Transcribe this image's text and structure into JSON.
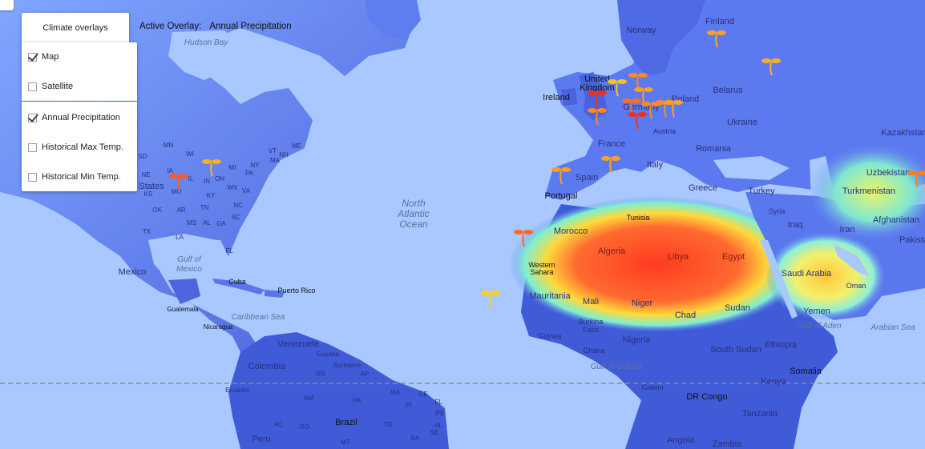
{
  "controls": {
    "overlay_button_label": "Climate overlays",
    "active_overlay_label": "Active Overlay:",
    "active_overlay_value": "Annual Precipitation",
    "map_types": [
      {
        "label": "Map",
        "checked": true
      },
      {
        "label": "Satellite",
        "checked": false
      }
    ],
    "overlays": [
      {
        "label": "Annual Precipitation",
        "checked": true
      },
      {
        "label": "Historical Max Temp.",
        "checked": false
      },
      {
        "label": "Historical Min Temp.",
        "checked": false
      }
    ]
  },
  "map": {
    "ocean_labels": {
      "north_atlantic_1": "North",
      "north_atlantic_2": "Atlantic",
      "north_atlantic_3": "Ocean",
      "hudson_bay": "Hudson Bay",
      "gulf_mexico_1": "Gulf of",
      "gulf_mexico_2": "Mexico",
      "caribbean": "Caribbean Sea",
      "gulf_guinea": "Gulf of Guinea",
      "gulf_aden": "Gulf of Aden",
      "arabian_sea": "Arabian Sea"
    },
    "country_labels": {
      "united_kingdom_1": "United",
      "united_kingdom_2": "Kingdom",
      "ireland": "Ireland",
      "norway": "Norway",
      "finland": "Finland",
      "belarus": "Belarus",
      "poland": "Poland",
      "germany": "Germany",
      "ukraine": "Ukraine",
      "france": "France",
      "spain": "Spain",
      "portugal": "Portugal",
      "italy": "Italy",
      "greece": "Greece",
      "romania": "Romania",
      "austria": "Austria",
      "turkey": "Turkey",
      "kazakhstan": "Kazakhstan",
      "uzbekistan": "Uzbekistan",
      "turkmenistan": "Turkmenistan",
      "afghanistan": "Afghanistan",
      "pakistan": "Pakista",
      "iran": "Iran",
      "iraq": "Iraq",
      "syria": "Syria",
      "saudi_arabia": "Saudi Arabia",
      "oman": "Oman",
      "yemen": "Yemen",
      "morocco": "Morocco",
      "tunisia": "Tunisia",
      "algeria": "Algeria",
      "libya": "Libya",
      "egypt": "Egypt",
      "western_sahara_1": "Western",
      "western_sahara_2": "Sahara",
      "mauritania": "Mauritania",
      "mali": "Mali",
      "niger": "Niger",
      "chad": "Chad",
      "sudan": "Sudan",
      "south_sudan": "South Sudan",
      "ethiopia": "Ethiopia",
      "somalia": "Somalia",
      "kenya": "Kenya",
      "tanzania": "Tanzania",
      "dr_congo": "DR Congo",
      "angola": "Angola",
      "zambia": "Zambia",
      "gabon": "Gabon",
      "nigeria": "Nigeria",
      "burkina_1": "Burkina",
      "burkina_2": "Faso",
      "ghana": "Ghana",
      "guinea": "Guinea",
      "mexico": "Mexico",
      "guatemala": "Guatemala",
      "nicaragua": "Nicaragua",
      "cuba": "Cuba",
      "puerto_rico": "Puerto Rico",
      "venezuela": "Venezuela",
      "colombia": "Colombia",
      "guyana": "Guyana",
      "suriname": "Suriname",
      "ecuador": "Ecuador",
      "peru": "Peru",
      "brazil": "Brazil",
      "united_states": "States"
    },
    "state_labels": [
      "MN",
      "WI",
      "MI",
      "SD",
      "NE",
      "IA",
      "IL",
      "IN",
      "OH",
      "PA",
      "NY",
      "KS",
      "MO",
      "KY",
      "WV",
      "VA",
      "OK",
      "AR",
      "TN",
      "NC",
      "MS",
      "AL",
      "GA",
      "SC",
      "TX",
      "LA",
      "FL",
      "ME",
      "VT",
      "NH",
      "MA"
    ],
    "brazil_states": [
      "RR",
      "AP",
      "AM",
      "PA",
      "MA",
      "CE",
      "RN",
      "PI",
      "PE",
      "AC",
      "RO",
      "TO",
      "BA",
      "MT",
      "AL",
      "SE"
    ]
  },
  "legend_colors": {
    "ocean": "#a9c8ff",
    "land_wet": "#3f5bd8",
    "land_mid": "#6a8cf0",
    "land_dry": "#ffd84a",
    "desert": "#ff5a2a"
  }
}
